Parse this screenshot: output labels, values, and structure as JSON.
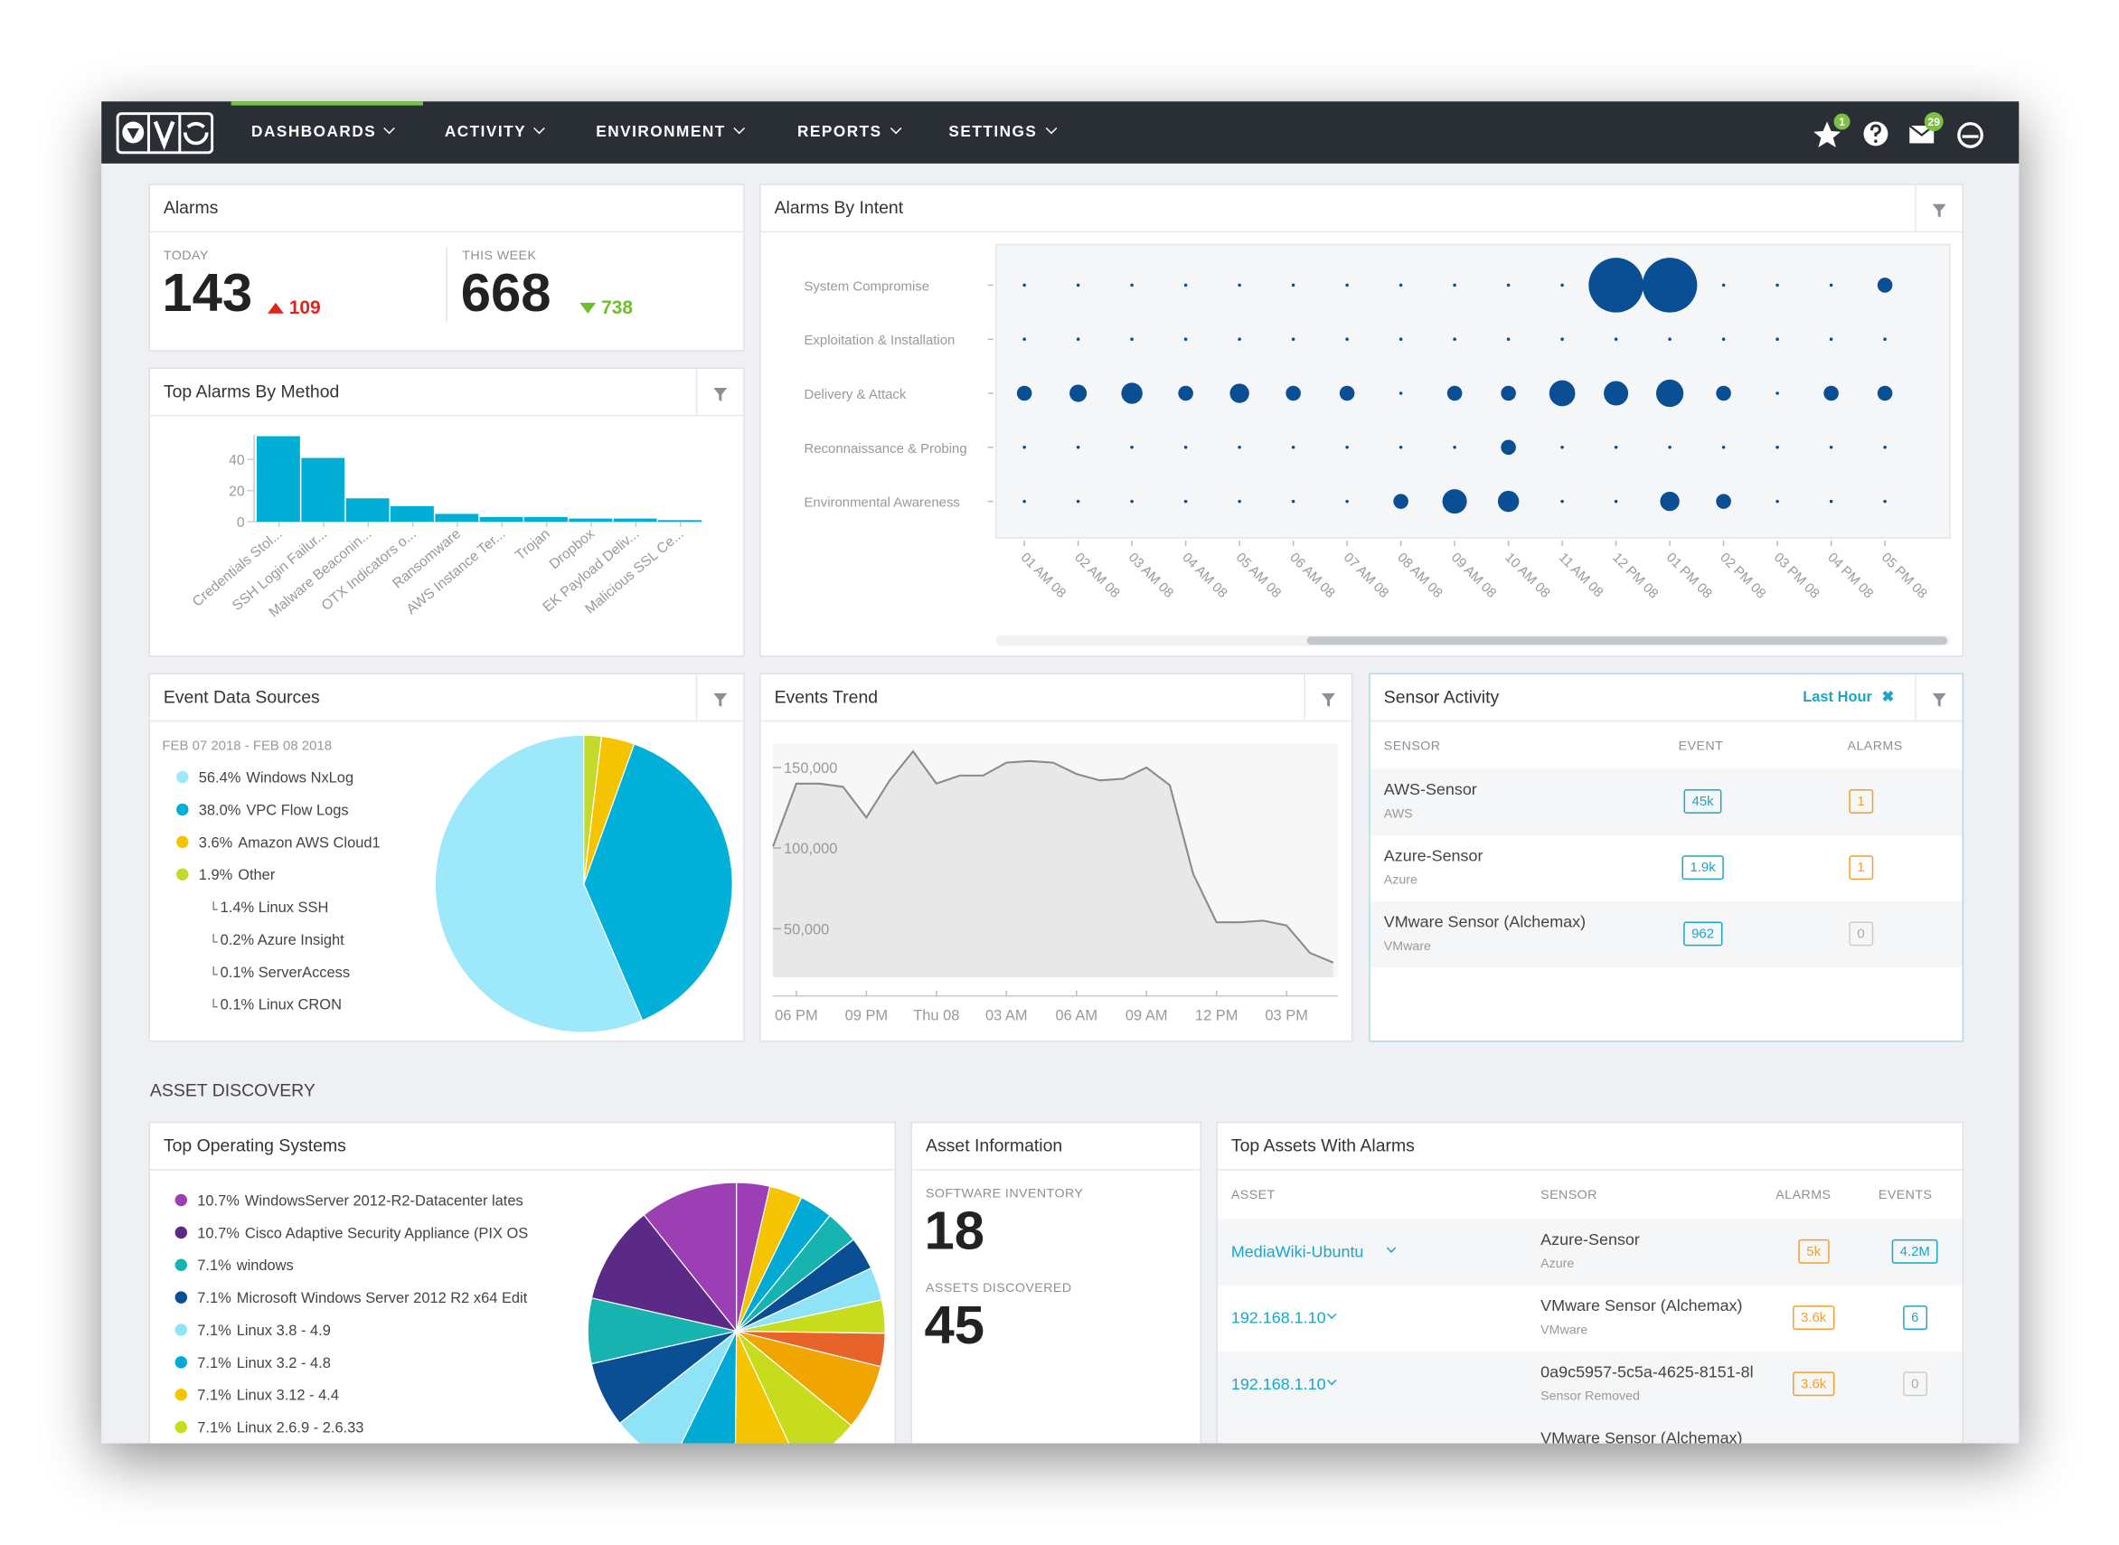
{
  "nav": {
    "items": [
      "DASHBOARDS",
      "ACTIVITY",
      "ENVIRONMENT",
      "REPORTS",
      "SETTINGS"
    ],
    "badges": [
      "1",
      "29"
    ]
  },
  "alarms": {
    "title": "Alarms",
    "today_label": "TODAY",
    "today": 143,
    "today_change": 109,
    "week_label": "THIS WEEK",
    "week": 668,
    "week_change": 738
  },
  "chart_data": [
    {
      "type": "bar",
      "title": "Top Alarms By Method",
      "categories": [
        "Credentials Stol...",
        "SSH Login Failur...",
        "Malware Beaconin...",
        "OTX Indicators o...",
        "Ransomware",
        "AWS Instance Ter...",
        "Trojan",
        "Dropbox",
        "EK Payload Deliv...",
        "Malicious SSL Ce..."
      ],
      "values": [
        55,
        41,
        15,
        10,
        5,
        3,
        3,
        2,
        2,
        1
      ],
      "color": "#00aed6",
      "ylim": [
        0,
        56
      ],
      "yticks": [
        0,
        20,
        40
      ]
    },
    {
      "type": "bubble",
      "title": "Alarms By Intent",
      "categories": [
        "01 AM 08",
        "02 AM 08",
        "03 AM 08",
        "04 AM 08",
        "05 AM 08",
        "06 AM 08",
        "07 AM 08",
        "08 AM 08",
        "09 AM 08",
        "10 AM 08",
        "11 AM 08",
        "12 PM 08",
        "01 PM 08",
        "02 PM 08",
        "03 PM 08",
        "04 PM 08",
        "05 PM 08"
      ],
      "rows": [
        "System Compromise",
        "Exploitation & Installation",
        "Delivery & Attack",
        "Reconnaissance & Probing",
        "Environmental Awareness"
      ],
      "values": [
        [
          0,
          0,
          0,
          0,
          0,
          0,
          0,
          0,
          0,
          0,
          0,
          40,
          40,
          0,
          0,
          0,
          3
        ],
        [
          0,
          0,
          0,
          0,
          0,
          0,
          0,
          0,
          0,
          0,
          0,
          0,
          0,
          0,
          0,
          0,
          0
        ],
        [
          3,
          4,
          6,
          3,
          5,
          3,
          3,
          0,
          3,
          3,
          9,
          8,
          10,
          3,
          0,
          3,
          3
        ],
        [
          0,
          0,
          0,
          0,
          0,
          0,
          0,
          0,
          0,
          3,
          0,
          0,
          0,
          0,
          0,
          0,
          0
        ],
        [
          0,
          0,
          0,
          0,
          0,
          0,
          0,
          3,
          8,
          6,
          0,
          0,
          5,
          3,
          0,
          0,
          0
        ]
      ],
      "color": "#0a4e94"
    },
    {
      "type": "pie",
      "title": "Event Data Sources",
      "subtitle": "FEB 07 2018 - FEB 08 2018",
      "categories": [
        "Windows NxLog",
        "VPC Flow Logs",
        "Amazon AWS Cloud1",
        "Other"
      ],
      "values": [
        56.4,
        38.0,
        3.6,
        1.9
      ],
      "value_labels": [
        "56.4%",
        "38.0%",
        "3.6%",
        "1.9%"
      ],
      "colors": [
        "#9ee8fb",
        "#00b0d8",
        "#f5c400",
        "#c5d92a"
      ],
      "other_breakdown": [
        "1.4% Linux SSH",
        "0.2% Azure Insight",
        "0.1% ServerAccess",
        "0.1% Linux CRON"
      ]
    },
    {
      "type": "line",
      "title": "Events Trend",
      "x": [
        -1,
        0,
        1,
        2,
        3,
        4,
        5,
        6,
        7,
        8,
        9,
        10,
        11,
        12,
        13,
        14,
        15,
        16,
        17,
        18,
        19,
        20,
        21,
        22,
        23
      ],
      "values": [
        101000,
        140000,
        140000,
        138000,
        119000,
        142000,
        160000,
        140000,
        145000,
        145000,
        153000,
        154000,
        153000,
        146000,
        142000,
        143000,
        150000,
        139000,
        84000,
        54000,
        54000,
        55000,
        52000,
        35000,
        29000
      ],
      "color": "#8a8a8a",
      "xlim": [
        -1,
        23.2
      ],
      "ylim": [
        20000,
        165000
      ],
      "xticks": [
        {
          "value": 0,
          "label": "06 PM"
        },
        {
          "value": 3,
          "label": "09 PM"
        },
        {
          "value": 6,
          "label": "Thu 08"
        },
        {
          "value": 9,
          "label": "03 AM"
        },
        {
          "value": 12,
          "label": "06 AM"
        },
        {
          "value": 15,
          "label": "09 AM"
        },
        {
          "value": 18,
          "label": "12 PM"
        },
        {
          "value": 21,
          "label": "03 PM"
        }
      ],
      "yticks": [
        {
          "value": 50000,
          "label": "50,000"
        },
        {
          "value": 100000,
          "label": "100,000"
        },
        {
          "value": 150000,
          "label": "150,000"
        }
      ]
    },
    {
      "type": "pie",
      "title": "Top Operating Systems",
      "categories": [
        "WindowsServer 2012-R2-Datacenter lates",
        "Cisco Adaptive Security Appliance (PIX OS",
        "windows",
        "Microsoft Windows Server 2012 R2 x64 Edit",
        "Linux 3.8 - 4.9",
        "Linux 3.2 - 4.8",
        "Linux 3.12 - 4.4",
        "Linux 2.6.9 - 2.6.33",
        null,
        null,
        null,
        null,
        null,
        null,
        null,
        null,
        null
      ],
      "values": [
        10.7,
        10.7,
        7.1,
        7.1,
        7.1,
        7.1,
        7.1,
        7.1,
        7.1,
        3.6,
        3.6,
        3.6,
        3.6,
        3.6,
        3.6,
        3.6,
        3.6
      ],
      "value_labels": [
        "10.7%",
        "10.7%",
        "7.1%",
        "7.1%",
        "7.1%",
        "7.1%",
        "7.1%",
        "7.1%",
        null,
        null,
        null,
        null,
        null,
        null,
        null,
        null,
        null
      ],
      "colors": [
        "#9c3fb5",
        "#5b2a86",
        "#16b3b0",
        "#0a4e94",
        "#8fe3f7",
        "#00aad5",
        "#f5c400",
        "#c8dc1e",
        "#f0a500",
        "#e8632a",
        "#c8dc1e",
        "#8fe3f7",
        "#0a4e94",
        "#16b3b0",
        "#00aad5",
        "#f5c400",
        "#9c3fb5"
      ]
    }
  ],
  "sensor_activity": {
    "title": "Sensor Activity",
    "filter": "Last Hour",
    "columns": [
      "SENSOR",
      "EVENT",
      "ALARMS"
    ],
    "rows": [
      [
        "AWS-Sensor",
        "AWS",
        "45k",
        1
      ],
      [
        "Azure-Sensor",
        "Azure",
        "1.9k",
        1
      ],
      [
        "VMware Sensor (Alchemax)",
        "VMware",
        962,
        0
      ]
    ]
  },
  "asset_discovery": {
    "section": "ASSET DISCOVERY",
    "asset_information": {
      "title": "Asset Information",
      "software_label": "SOFTWARE INVENTORY",
      "software": 18,
      "assets_label": "ASSETS DISCOVERED",
      "assets": 45
    },
    "top_assets": {
      "title": "Top Assets With Alarms",
      "columns": [
        "ASSET",
        "SENSOR",
        "ALARMS",
        "EVENTS"
      ],
      "rows": [
        [
          "MediaWiki-Ubuntu",
          "Azure-Sensor",
          "Azure",
          "5k",
          "4.2M"
        ],
        [
          "192.168.1.10",
          "VMware Sensor (Alchemax)",
          "VMware",
          "3.6k",
          6
        ],
        [
          "192.168.1.10",
          "0a9c5957-5c5a-4625-8151-8l",
          "Sensor Removed",
          "3.6k",
          0
        ]
      ],
      "last_row_sensor": "VMware Sensor (Alchemax)"
    }
  }
}
